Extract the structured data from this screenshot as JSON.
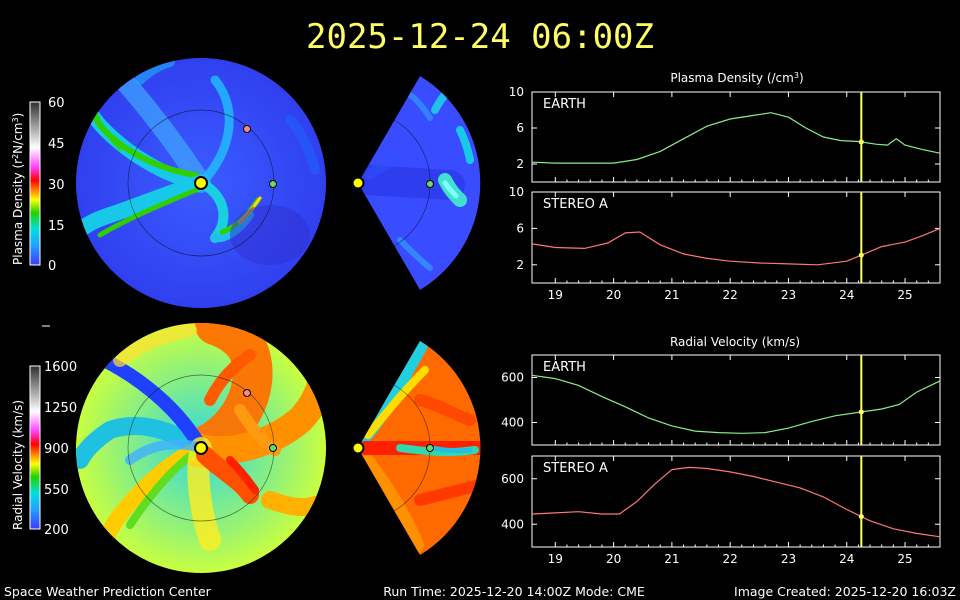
{
  "header": {
    "title": "2025-12-24  06:00Z"
  },
  "footer": {
    "center": "Space Weather Prediction Center",
    "run_info": "Run Time: 2025-12-20 14:00Z  Mode: CME",
    "image_created": "Image Created: 2025-12-20 16:03Z"
  },
  "density_colorbar": {
    "label_text": "Plasma Density (r",
    "label_sup": "2",
    "label_mid": "N/cm",
    "label_sup2": "3",
    "label_end": ")",
    "ticks": [
      "60",
      "45",
      "30",
      "15",
      "0"
    ]
  },
  "velocity_colorbar": {
    "label": "Radial Velocity (km/s)",
    "ticks": [
      "1600",
      "1250",
      "900",
      "550",
      "200"
    ]
  },
  "colors": {
    "earth_series": "#88ee88",
    "stereo_series": "#ff7777",
    "time_marker": "#ffff66",
    "earth_marker": "#66dd66",
    "stereo_marker": "#ff8888",
    "sun": "#ffff00"
  },
  "icons": {
    "sun": "sun-icon",
    "earth": "earth-marker-icon",
    "stereo": "stereo-a-marker-icon"
  },
  "chart_data": [
    {
      "type": "line",
      "title": "Plasma Density (/cm",
      "title_sup": "3",
      "title_end": ")",
      "panels": [
        {
          "label": "EARTH",
          "color": "#88ee88",
          "ylim": [
            0,
            10
          ],
          "yticks": [
            "10",
            "6",
            "2"
          ],
          "x": [
            18.6,
            19.0,
            19.5,
            20.0,
            20.4,
            20.8,
            21.2,
            21.6,
            22.0,
            22.4,
            22.7,
            23.0,
            23.3,
            23.6,
            23.9,
            24.2,
            24.5,
            24.7,
            24.85,
            25.0,
            25.3,
            25.6
          ],
          "values": [
            2.2,
            2.1,
            2.1,
            2.1,
            2.5,
            3.4,
            4.8,
            6.2,
            7.0,
            7.4,
            7.7,
            7.2,
            6.0,
            5.0,
            4.6,
            4.5,
            4.2,
            4.1,
            4.8,
            4.1,
            3.6,
            3.2
          ]
        },
        {
          "label": "STEREO A",
          "color": "#ff7777",
          "ylim": [
            0,
            10
          ],
          "yticks": [
            "10",
            "6",
            "2"
          ],
          "x": [
            18.6,
            19.0,
            19.5,
            19.9,
            20.2,
            20.45,
            20.8,
            21.2,
            21.6,
            22.0,
            22.5,
            23.0,
            23.5,
            24.0,
            24.3,
            24.6,
            25.0,
            25.3,
            25.6
          ],
          "values": [
            4.3,
            3.9,
            3.8,
            4.4,
            5.5,
            5.6,
            4.2,
            3.2,
            2.7,
            2.4,
            2.2,
            2.1,
            2.0,
            2.4,
            3.2,
            4.0,
            4.5,
            5.2,
            6.0
          ]
        }
      ],
      "xlim": [
        18.6,
        25.6
      ],
      "xticks": [
        "19",
        "20",
        "21",
        "22",
        "23",
        "24",
        "25"
      ],
      "marker_x": 24.25
    },
    {
      "type": "line",
      "title": "Radial Velocity (km/s)",
      "panels": [
        {
          "label": "EARTH",
          "color": "#88ee88",
          "ylim": [
            300,
            700
          ],
          "yticks": [
            "600",
            "400"
          ],
          "x": [
            18.6,
            19.0,
            19.4,
            19.8,
            20.2,
            20.6,
            21.0,
            21.4,
            21.8,
            22.2,
            22.6,
            23.0,
            23.4,
            23.8,
            24.2,
            24.6,
            24.9,
            25.2,
            25.6
          ],
          "values": [
            610,
            595,
            565,
            515,
            470,
            420,
            385,
            362,
            355,
            352,
            355,
            375,
            405,
            430,
            445,
            460,
            480,
            535,
            585
          ]
        },
        {
          "label": "STEREO A",
          "color": "#ff7777",
          "ylim": [
            300,
            700
          ],
          "yticks": [
            "600",
            "400"
          ],
          "x": [
            18.6,
            19.0,
            19.4,
            19.8,
            20.1,
            20.4,
            20.7,
            21.0,
            21.3,
            21.6,
            22.0,
            22.4,
            22.8,
            23.2,
            23.6,
            24.0,
            24.4,
            24.8,
            25.2,
            25.6
          ],
          "values": [
            445,
            450,
            455,
            445,
            445,
            500,
            575,
            640,
            650,
            645,
            630,
            610,
            585,
            560,
            520,
            465,
            415,
            380,
            360,
            345
          ]
        }
      ],
      "xlim": [
        18.6,
        25.6
      ],
      "xticks": [
        "19",
        "20",
        "21",
        "22",
        "23",
        "24",
        "25"
      ],
      "marker_x": 24.25
    }
  ]
}
